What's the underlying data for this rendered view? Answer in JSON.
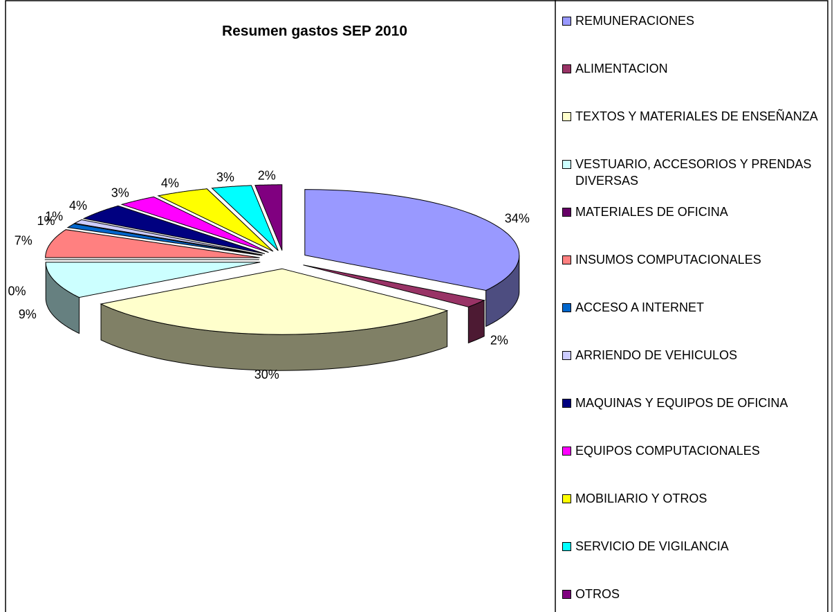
{
  "chart_data": {
    "type": "pie",
    "title": "Resumen gastos SEP 2010",
    "categories": [
      "REMUNERACIONES",
      "ALIMENTACION",
      "TEXTOS Y MATERIALES DE ENSEÑANZA",
      "VESTUARIO, ACCESORIOS Y PRENDAS DIVERSAS",
      "MATERIALES DE OFICINA",
      "INSUMOS COMPUTACIONALES",
      "ACCESO A INTERNET",
      "ARRIENDO DE VEHICULOS",
      "MAQUINAS Y EQUIPOS DE OFICINA",
      "EQUIPOS COMPUTACIONALES",
      "MOBILIARIO Y OTROS",
      "SERVICIO DE VIGILANCIA",
      "OTROS"
    ],
    "values": [
      34,
      2,
      30,
      9,
      0,
      7,
      1,
      1,
      4,
      3,
      4,
      3,
      2
    ],
    "value_labels": [
      "34%",
      "2%",
      "30%",
      "9%",
      "0%",
      "7%",
      "1%",
      "1%",
      "4%",
      "3%",
      "4%",
      "3%",
      "2%"
    ],
    "colors": [
      "#9999ff",
      "#993366",
      "#ffffcc",
      "#ccffff",
      "#660066",
      "#ff8080",
      "#0066cc",
      "#ccccff",
      "#000080",
      "#ff00ff",
      "#ffff00",
      "#00ffff",
      "#800080"
    ],
    "legend": "right"
  }
}
